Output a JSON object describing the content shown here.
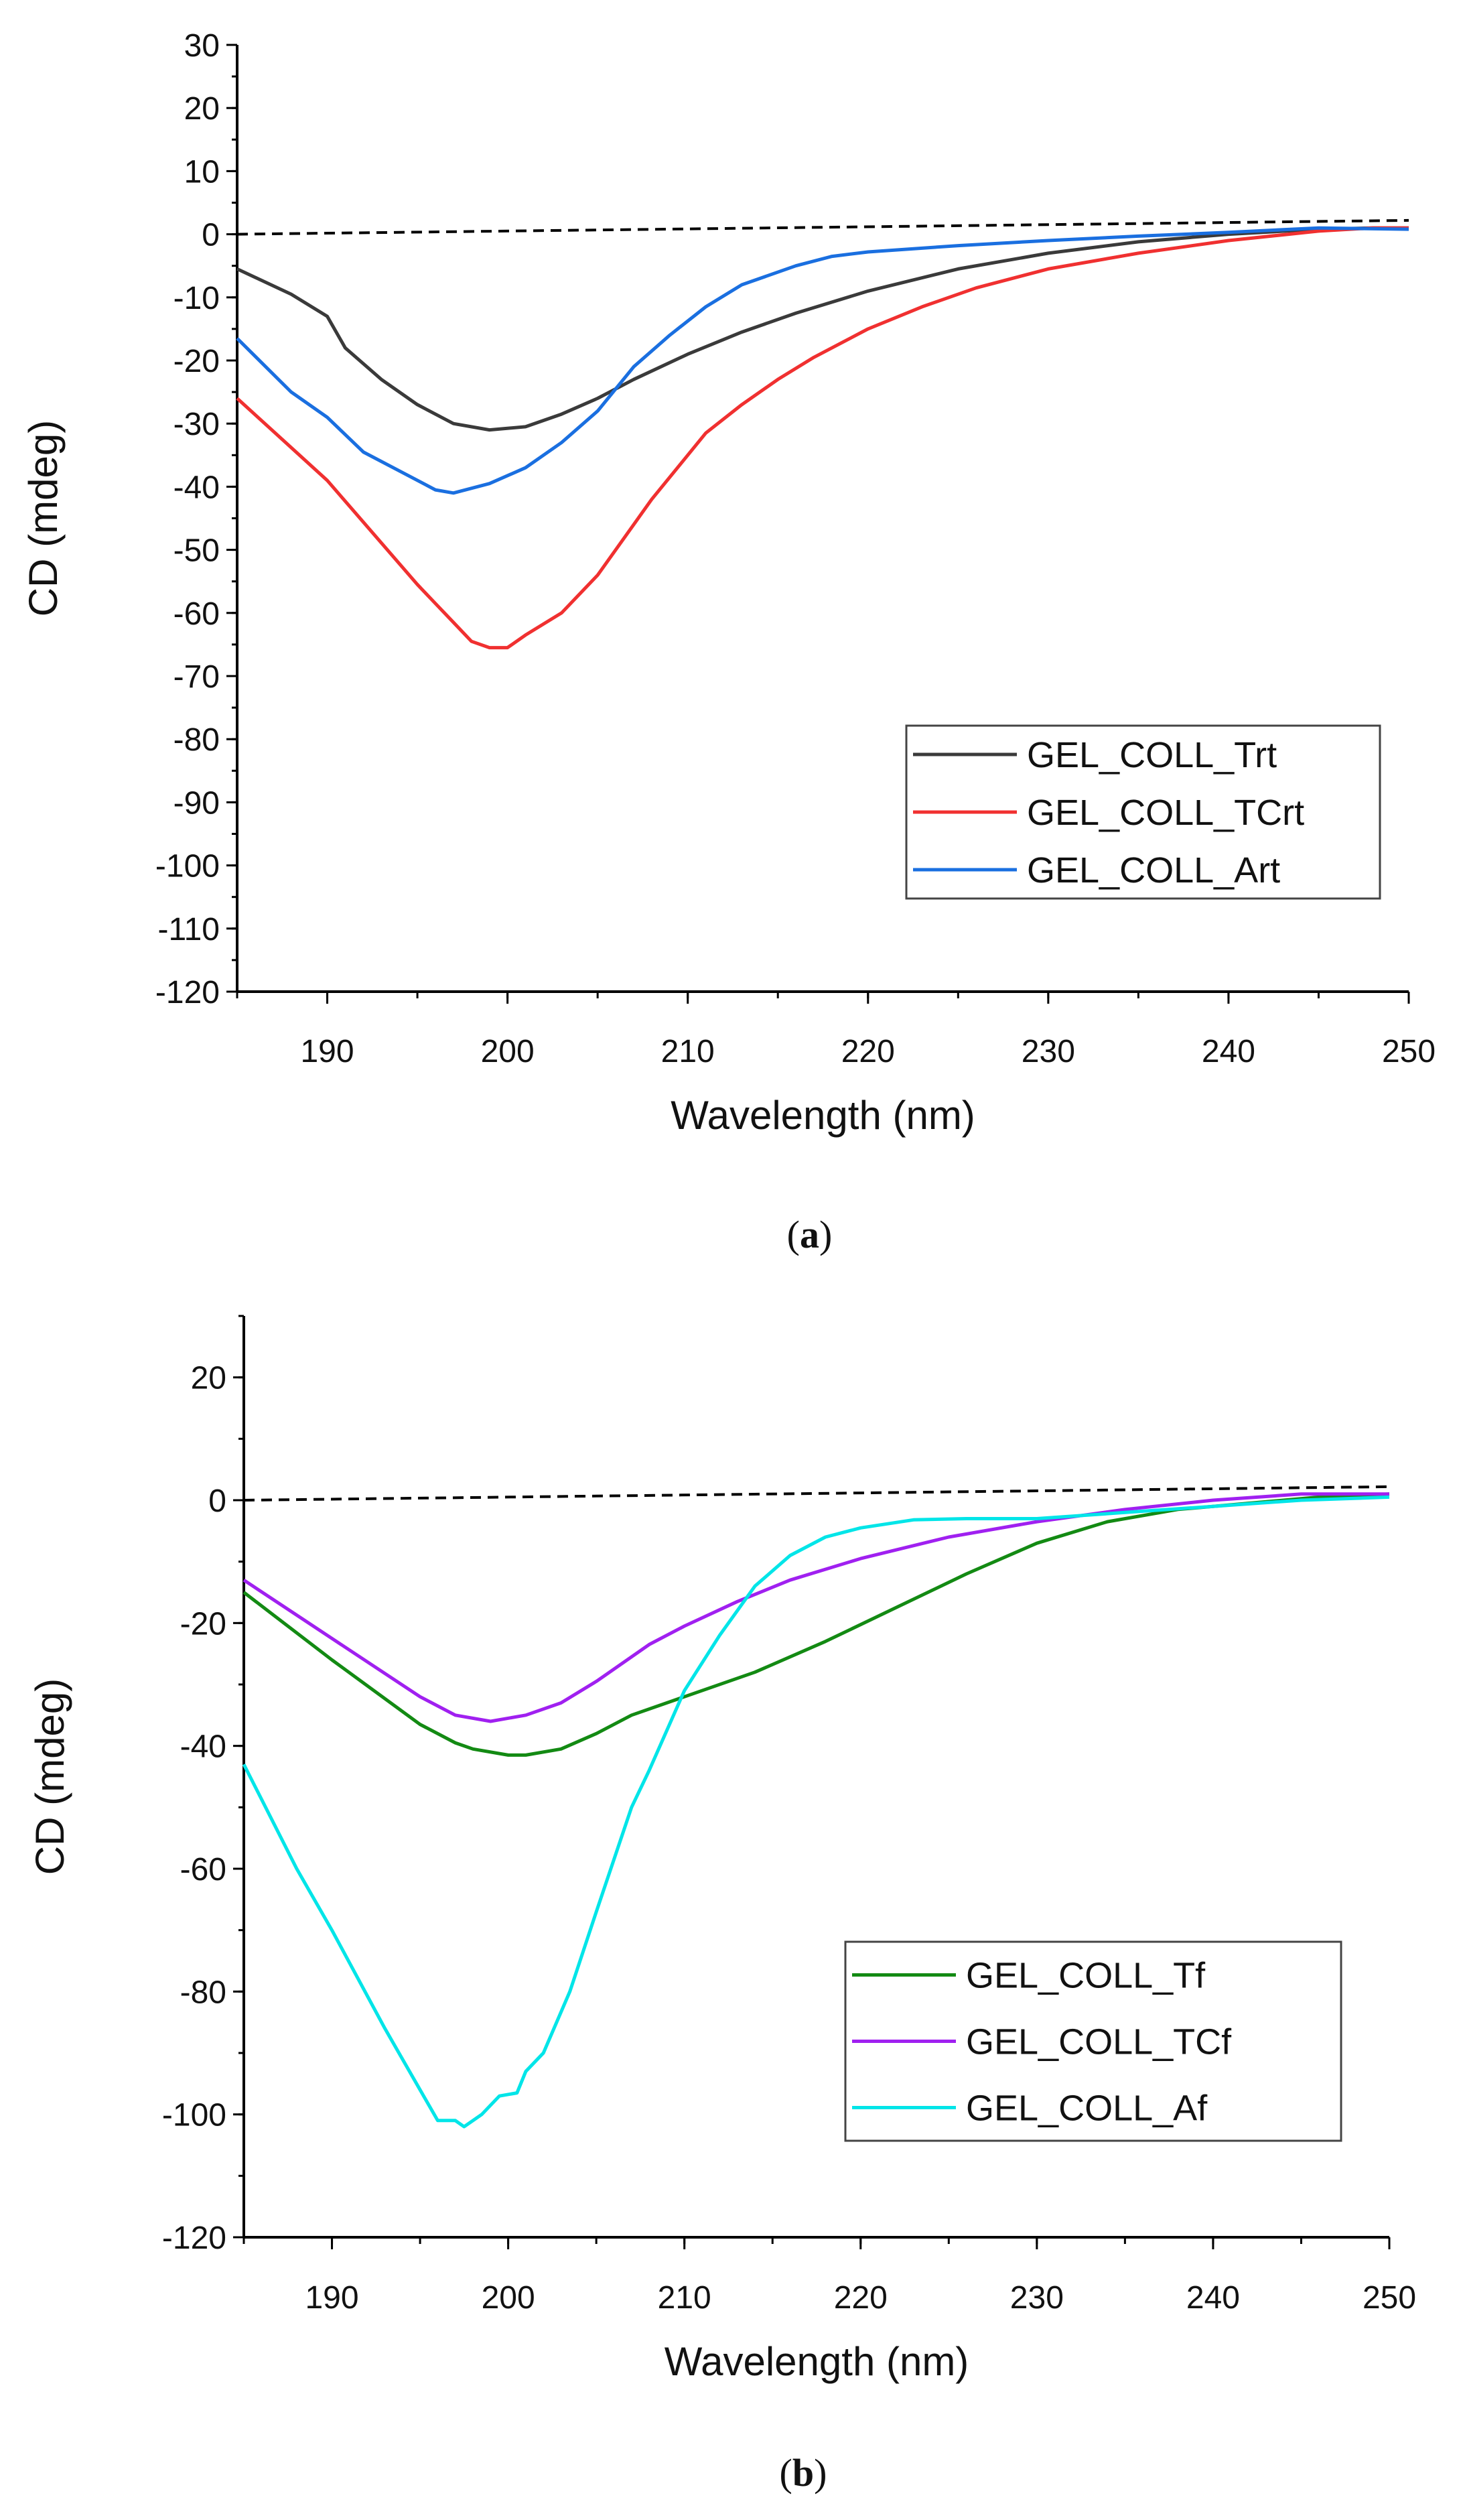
{
  "chart_data": [
    {
      "type": "line",
      "caption": "a",
      "xlabel": "Wavelength (nm)",
      "ylabel": "CD (mdeg)",
      "xlim": [
        185,
        250
      ],
      "ylim": [
        -120,
        30
      ],
      "xticks": [
        190,
        200,
        210,
        220,
        230,
        240,
        250
      ],
      "yticks": [
        30,
        20,
        10,
        0,
        -10,
        -20,
        -30,
        -40,
        -50,
        -60,
        -70,
        -80,
        -90,
        -100,
        -110,
        -120
      ],
      "legend_position": "lower-right",
      "baseline": {
        "style": "dashed",
        "color": "#000000",
        "x": [
          185,
          250
        ],
        "y": [
          0,
          2.2
        ]
      },
      "series": [
        {
          "name": "GEL_COLL_Trt",
          "color": "#3a3a3a",
          "x": [
            185,
            188,
            190,
            191,
            193,
            195,
            197,
            199,
            201,
            203,
            205,
            207,
            210,
            213,
            216,
            220,
            225,
            230,
            235,
            240,
            245,
            248,
            250
          ],
          "y": [
            -5.5,
            -9.5,
            -13,
            -18,
            -23,
            -27,
            -30,
            -31,
            -30.5,
            -28.5,
            -26,
            -23,
            -19,
            -15.5,
            -12.5,
            -9,
            -5.5,
            -3,
            -1.2,
            0,
            0.8,
            1,
            1
          ]
        },
        {
          "name": "GEL_COLL_TCrt",
          "color": "#f03030",
          "x": [
            185,
            190,
            195,
            196,
            197,
            198,
            199,
            200,
            201,
            203,
            205,
            207,
            208,
            210,
            211,
            213,
            215,
            217,
            220,
            223,
            226,
            230,
            235,
            240,
            245,
            248,
            250
          ],
          "y": [
            -26,
            -39,
            -55.5,
            -58.5,
            -61.5,
            -64.5,
            -65.5,
            -65.5,
            -63.5,
            -60,
            -54,
            -46,
            -42,
            -35,
            -31.5,
            -27,
            -23,
            -19.5,
            -15,
            -11.5,
            -8.5,
            -5.5,
            -3,
            -1,
            0.5,
            1,
            1
          ]
        },
        {
          "name": "GEL_COLL_Art",
          "color": "#1a6fe0",
          "x": [
            185,
            188,
            190,
            192,
            194,
            196,
            197,
            199,
            201,
            203,
            205,
            207,
            209,
            211,
            213,
            216,
            218,
            220,
            225,
            230,
            235,
            240,
            245,
            250
          ],
          "y": [
            -16.5,
            -25,
            -29,
            -34.5,
            -37.5,
            -40.5,
            -41,
            -39.5,
            -37,
            -33,
            -28,
            -21,
            -16,
            -11.5,
            -8,
            -5,
            -3.5,
            -2.8,
            -1.8,
            -1,
            -0.3,
            0.3,
            1,
            0.8
          ]
        }
      ]
    },
    {
      "type": "line",
      "caption": "b",
      "xlabel": "Wavelength (nm)",
      "ylabel": "CD (mdeg)",
      "xlim": [
        185,
        250
      ],
      "ylim": [
        -120,
        30
      ],
      "xticks": [
        190,
        200,
        210,
        220,
        230,
        240,
        250
      ],
      "yticks": [
        20,
        0,
        -20,
        -40,
        -60,
        -80,
        -100,
        -120
      ],
      "legend_position": "lower-right",
      "baseline": {
        "style": "dashed",
        "color": "#000000",
        "x": [
          185,
          250
        ],
        "y": [
          0,
          2.2
        ]
      },
      "series": [
        {
          "name": "GEL_COLL_Tf",
          "color": "#138a13",
          "x": [
            185,
            190,
            195,
            197,
            198,
            200,
            201,
            203,
            205,
            207,
            210,
            214,
            218,
            222,
            226,
            230,
            234,
            238,
            242,
            246,
            250
          ],
          "y": [
            -15,
            -26,
            -36.5,
            -39.5,
            -40.5,
            -41.5,
            -41.5,
            -40.5,
            -38,
            -35,
            -32,
            -28,
            -23,
            -17.5,
            -12,
            -7,
            -3.5,
            -1.5,
            -0.5,
            0.5,
            1
          ]
        },
        {
          "name": "GEL_COLL_TCf",
          "color": "#a020f0",
          "x": [
            185,
            190,
            195,
            197,
            199,
            201,
            203,
            205,
            208,
            210,
            213,
            216,
            220,
            225,
            230,
            235,
            240,
            245,
            250
          ],
          "y": [
            -13,
            -22.5,
            -32,
            -35,
            -36,
            -35,
            -33,
            -29.5,
            -23.5,
            -20.5,
            -16.5,
            -13,
            -9.5,
            -6,
            -3.5,
            -1.5,
            0,
            1,
            1
          ]
        },
        {
          "name": "GEL_COLL_Af",
          "color": "#00e5e8",
          "x": [
            185,
            188,
            190,
            193,
            195,
            196,
            197,
            197.5,
            198.5,
            199.5,
            200.5,
            201,
            202,
            203.5,
            205,
            207,
            208,
            210,
            212,
            214,
            216,
            218,
            220,
            223,
            226,
            230,
            235,
            240,
            245,
            250
          ],
          "y": [
            -43,
            -60,
            -70,
            -86,
            -96,
            -101,
            -101,
            -102,
            -100,
            -97,
            -96.5,
            -93,
            -90,
            -80,
            -67,
            -50,
            -44,
            -31,
            -22,
            -14,
            -9,
            -6,
            -4.5,
            -3.2,
            -3,
            -3,
            -2,
            -1,
            0,
            0.5
          ]
        }
      ]
    }
  ]
}
